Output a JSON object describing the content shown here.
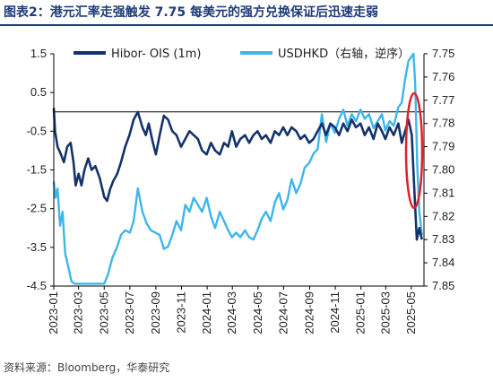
{
  "title": "图表2：港元汇率走强触发 7.75 每美元的强方兑换保证后迅速走弱",
  "source": "资料来源：Bloomberg，华泰研究",
  "colors": {
    "series1": "#14336b",
    "series2": "#3eb6ec",
    "highlight": "#e0202a",
    "title": "#1e3c78"
  },
  "chart_data": {
    "type": "line",
    "x_ticks": [
      "2023-01",
      "2023-03",
      "2023-05",
      "2023-07",
      "2023-09",
      "2023-11",
      "2024-01",
      "2024-03",
      "2024-05",
      "2024-07",
      "2024-09",
      "2024-11",
      "2025-01",
      "2025-03",
      "2025-05"
    ],
    "x_range": [
      "2023-01-01",
      "2025-05-31"
    ],
    "y_left": {
      "ticks": [
        "1.5",
        "0.5",
        "-0.5",
        "-1.5",
        "-2.5",
        "-3.5",
        "-4.5"
      ],
      "min": -4.5,
      "max": 1.5
    },
    "y_right": {
      "ticks": [
        "7.75",
        "7.76",
        "7.77",
        "7.78",
        "7.79",
        "7.80",
        "7.81",
        "7.82",
        "7.83",
        "7.84",
        "7.85"
      ],
      "min": 7.75,
      "max": 7.85,
      "inverted": true
    },
    "legend_placement": "top",
    "annotation": "red ellipse around 2025-05",
    "series": [
      {
        "name": "Hibor- OIS (1m)",
        "axis": "left",
        "points": [
          [
            "2023-01-01",
            0.1
          ],
          [
            "2023-01-04",
            -0.5
          ],
          [
            "2023-01-10",
            -0.9
          ],
          [
            "2023-01-18",
            -1.1
          ],
          [
            "2023-01-25",
            -1.3
          ],
          [
            "2023-02-02",
            -0.9
          ],
          [
            "2023-02-10",
            -0.8
          ],
          [
            "2023-02-17",
            -1.3
          ],
          [
            "2023-02-22",
            -1.9
          ],
          [
            "2023-03-01",
            -1.6
          ],
          [
            "2023-03-08",
            -1.9
          ],
          [
            "2023-03-15",
            -1.5
          ],
          [
            "2023-03-24",
            -1.2
          ],
          [
            "2023-04-01",
            -1.5
          ],
          [
            "2023-04-10",
            -1.4
          ],
          [
            "2023-04-20",
            -1.7
          ],
          [
            "2023-05-01",
            -2.2
          ],
          [
            "2023-05-08",
            -2.3
          ],
          [
            "2023-05-15",
            -2.0
          ],
          [
            "2023-05-22",
            -1.8
          ],
          [
            "2023-06-01",
            -1.6
          ],
          [
            "2023-06-10",
            -1.3
          ],
          [
            "2023-06-20",
            -0.9
          ],
          [
            "2023-06-30",
            -0.6
          ],
          [
            "2023-07-10",
            -0.2
          ],
          [
            "2023-07-20",
            0.0
          ],
          [
            "2023-07-31",
            -0.4
          ],
          [
            "2023-08-08",
            -0.6
          ],
          [
            "2023-08-15",
            -0.3
          ],
          [
            "2023-08-25",
            -0.8
          ],
          [
            "2023-09-01",
            -1.1
          ],
          [
            "2023-09-10",
            -0.6
          ],
          [
            "2023-09-20",
            -0.1
          ],
          [
            "2023-09-30",
            -0.2
          ],
          [
            "2023-10-10",
            -0.5
          ],
          [
            "2023-10-20",
            -0.6
          ],
          [
            "2023-10-31",
            -0.9
          ],
          [
            "2023-11-10",
            -0.7
          ],
          [
            "2023-11-20",
            -0.5
          ],
          [
            "2023-11-30",
            -0.6
          ],
          [
            "2023-12-10",
            -0.7
          ],
          [
            "2023-12-20",
            -1.0
          ],
          [
            "2023-12-31",
            -1.1
          ],
          [
            "2024-01-10",
            -0.8
          ],
          [
            "2024-01-20",
            -1.0
          ],
          [
            "2024-01-31",
            -1.1
          ],
          [
            "2024-02-10",
            -0.8
          ],
          [
            "2024-02-20",
            -0.9
          ],
          [
            "2024-02-29",
            -0.5
          ],
          [
            "2024-03-10",
            -0.9
          ],
          [
            "2024-03-20",
            -0.7
          ],
          [
            "2024-03-31",
            -0.6
          ],
          [
            "2024-04-10",
            -0.8
          ],
          [
            "2024-04-20",
            -0.6
          ],
          [
            "2024-04-30",
            -0.5
          ],
          [
            "2024-05-10",
            -0.7
          ],
          [
            "2024-05-20",
            -0.6
          ],
          [
            "2024-05-31",
            -0.8
          ],
          [
            "2024-06-10",
            -0.5
          ],
          [
            "2024-06-20",
            -0.6
          ],
          [
            "2024-06-30",
            -0.4
          ],
          [
            "2024-07-10",
            -0.6
          ],
          [
            "2024-07-20",
            -0.4
          ],
          [
            "2024-07-31",
            -0.5
          ],
          [
            "2024-08-10",
            -0.7
          ],
          [
            "2024-08-20",
            -0.6
          ],
          [
            "2024-08-31",
            -0.8
          ],
          [
            "2024-09-10",
            -0.7
          ],
          [
            "2024-09-20",
            -0.5
          ],
          [
            "2024-09-30",
            -0.3
          ],
          [
            "2024-10-10",
            -0.6
          ],
          [
            "2024-10-20",
            -0.3
          ],
          [
            "2024-10-31",
            -0.4
          ],
          [
            "2024-11-10",
            -0.6
          ],
          [
            "2024-11-20",
            -0.3
          ],
          [
            "2024-11-30",
            -0.5
          ],
          [
            "2024-12-10",
            -0.2
          ],
          [
            "2024-12-20",
            -0.4
          ],
          [
            "2024-12-31",
            -0.3
          ],
          [
            "2025-01-10",
            -0.6
          ],
          [
            "2025-01-20",
            -0.4
          ],
          [
            "2025-01-31",
            -0.7
          ],
          [
            "2025-02-10",
            -0.3
          ],
          [
            "2025-02-20",
            -0.5
          ],
          [
            "2025-02-28",
            -0.7
          ],
          [
            "2025-03-10",
            -0.4
          ],
          [
            "2025-03-20",
            -0.6
          ],
          [
            "2025-03-31",
            -0.3
          ],
          [
            "2025-04-08",
            -0.8
          ],
          [
            "2025-04-16",
            -0.5
          ],
          [
            "2025-04-24",
            -0.2
          ],
          [
            "2025-05-02",
            -0.6
          ],
          [
            "2025-05-08",
            -2.0
          ],
          [
            "2025-05-14",
            -3.3
          ],
          [
            "2025-05-20",
            -3.0
          ],
          [
            "2025-05-26",
            -3.3
          ]
        ]
      },
      {
        "name": "USDHKD（右轴，逆序）",
        "axis": "right",
        "points": [
          [
            "2023-01-01",
            7.805
          ],
          [
            "2023-01-05",
            7.812
          ],
          [
            "2023-01-10",
            7.808
          ],
          [
            "2023-01-16",
            7.824
          ],
          [
            "2023-01-22",
            7.818
          ],
          [
            "2023-01-28",
            7.836
          ],
          [
            "2023-02-05",
            7.842
          ],
          [
            "2023-02-12",
            7.848
          ],
          [
            "2023-02-20",
            7.849
          ],
          [
            "2023-03-01",
            7.849
          ],
          [
            "2023-03-15",
            7.849
          ],
          [
            "2023-04-01",
            7.849
          ],
          [
            "2023-04-15",
            7.849
          ],
          [
            "2023-05-01",
            7.849
          ],
          [
            "2023-05-10",
            7.845
          ],
          [
            "2023-05-20",
            7.838
          ],
          [
            "2023-06-01",
            7.833
          ],
          [
            "2023-06-10",
            7.828
          ],
          [
            "2023-06-20",
            7.826
          ],
          [
            "2023-07-01",
            7.827
          ],
          [
            "2023-07-10",
            7.822
          ],
          [
            "2023-07-20",
            7.808
          ],
          [
            "2023-07-31",
            7.818
          ],
          [
            "2023-08-10",
            7.823
          ],
          [
            "2023-08-20",
            7.826
          ],
          [
            "2023-08-31",
            7.827
          ],
          [
            "2023-09-10",
            7.828
          ],
          [
            "2023-09-20",
            7.834
          ],
          [
            "2023-09-30",
            7.833
          ],
          [
            "2023-10-10",
            7.828
          ],
          [
            "2023-10-20",
            7.822
          ],
          [
            "2023-10-31",
            7.826
          ],
          [
            "2023-11-10",
            7.815
          ],
          [
            "2023-11-20",
            7.818
          ],
          [
            "2023-11-30",
            7.812
          ],
          [
            "2023-12-10",
            7.815
          ],
          [
            "2023-12-20",
            7.818
          ],
          [
            "2023-12-31",
            7.812
          ],
          [
            "2024-01-10",
            7.82
          ],
          [
            "2024-01-20",
            7.825
          ],
          [
            "2024-01-31",
            7.818
          ],
          [
            "2024-02-10",
            7.822
          ],
          [
            "2024-02-20",
            7.826
          ],
          [
            "2024-02-29",
            7.829
          ],
          [
            "2024-03-10",
            7.827
          ],
          [
            "2024-03-20",
            7.829
          ],
          [
            "2024-03-31",
            7.826
          ],
          [
            "2024-04-10",
            7.829
          ],
          [
            "2024-04-20",
            7.83
          ],
          [
            "2024-04-30",
            7.826
          ],
          [
            "2024-05-10",
            7.821
          ],
          [
            "2024-05-20",
            7.818
          ],
          [
            "2024-05-31",
            7.822
          ],
          [
            "2024-06-10",
            7.814
          ],
          [
            "2024-06-20",
            7.81
          ],
          [
            "2024-06-30",
            7.817
          ],
          [
            "2024-07-10",
            7.813
          ],
          [
            "2024-07-20",
            7.804
          ],
          [
            "2024-07-31",
            7.81
          ],
          [
            "2024-08-10",
            7.806
          ],
          [
            "2024-08-20",
            7.799
          ],
          [
            "2024-08-31",
            7.797
          ],
          [
            "2024-09-10",
            7.793
          ],
          [
            "2024-09-20",
            7.791
          ],
          [
            "2024-09-30",
            7.776
          ],
          [
            "2024-10-10",
            7.788
          ],
          [
            "2024-10-20",
            7.78
          ],
          [
            "2024-10-31",
            7.784
          ],
          [
            "2024-11-10",
            7.778
          ],
          [
            "2024-11-20",
            7.774
          ],
          [
            "2024-11-30",
            7.781
          ],
          [
            "2024-12-10",
            7.776
          ],
          [
            "2024-12-20",
            7.779
          ],
          [
            "2024-12-31",
            7.774
          ],
          [
            "2025-01-10",
            7.778
          ],
          [
            "2025-01-20",
            7.776
          ],
          [
            "2025-01-31",
            7.782
          ],
          [
            "2025-02-10",
            7.779
          ],
          [
            "2025-02-20",
            7.776
          ],
          [
            "2025-02-28",
            7.783
          ],
          [
            "2025-03-10",
            7.779
          ],
          [
            "2025-03-20",
            7.781
          ],
          [
            "2025-03-31",
            7.773
          ],
          [
            "2025-04-08",
            7.771
          ],
          [
            "2025-04-16",
            7.761
          ],
          [
            "2025-04-24",
            7.753
          ],
          [
            "2025-05-02",
            7.751
          ],
          [
            "2025-05-06",
            7.75
          ],
          [
            "2025-05-10",
            7.763
          ],
          [
            "2025-05-15",
            7.798
          ],
          [
            "2025-05-20",
            7.818
          ],
          [
            "2025-05-26",
            7.828
          ]
        ]
      }
    ]
  }
}
